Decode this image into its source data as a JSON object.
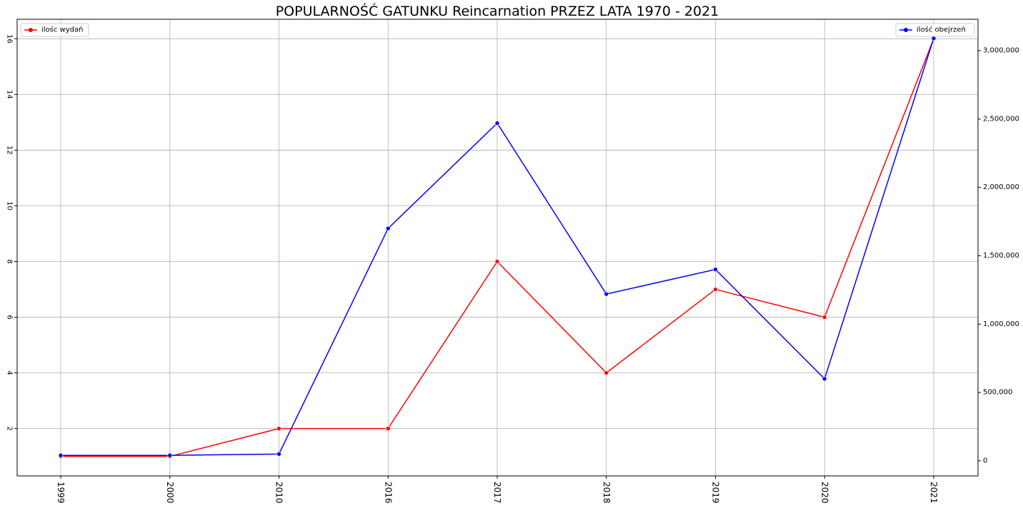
{
  "chart_data": {
    "type": "line",
    "title": "POPULARNOŚĆ GATUNKU Reincarnation PRZEZ LATA 1970 - 2021",
    "categories": [
      "1999",
      "2000",
      "2010",
      "2016",
      "2017",
      "2018",
      "2019",
      "2020",
      "2021"
    ],
    "y_left": {
      "lim": [
        0.3,
        16.7
      ],
      "ticks": [
        2,
        4,
        6,
        8,
        10,
        12,
        14,
        16
      ],
      "tick_labels": [
        "2",
        "4",
        "6",
        "8",
        "10",
        "12",
        "14",
        "16"
      ]
    },
    "y_right": {
      "lim": [
        -110000,
        3230000
      ],
      "ticks": [
        0,
        500000,
        1000000,
        1500000,
        2000000,
        2500000,
        3000000
      ],
      "tick_labels": [
        "0",
        "500,000",
        "1,000,000",
        "1,500,000",
        "2,000,000",
        "2,500,000",
        "3,000,000"
      ]
    },
    "grid": true,
    "series": [
      {
        "name": "ilośc wydań",
        "axis": "left",
        "color": "#ff0000",
        "values": [
          1,
          1,
          2,
          2,
          8,
          4,
          7,
          6,
          16
        ],
        "legend_position": "top-left"
      },
      {
        "name": "ilość obejrzeń",
        "axis": "right",
        "color": "#0000ff",
        "values": [
          40000,
          40000,
          50000,
          1700000,
          2470000,
          1220000,
          1400000,
          600000,
          3090000
        ],
        "legend_position": "top-right"
      }
    ]
  }
}
